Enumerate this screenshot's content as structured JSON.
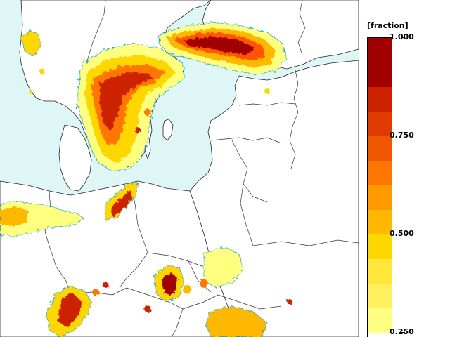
{
  "map": {
    "region": "Northern and Central Europe",
    "ocean_color": "#dff6f6",
    "land_color": "#ffffff",
    "border_color": "#333333",
    "coast_color": "#222222",
    "contour_color": "#19a7c9"
  },
  "legend": {
    "unit_label": "[fraction]",
    "classes": [
      {
        "from": 0.875,
        "to": 1.0,
        "color": "#a00000"
      },
      {
        "from": 0.8125,
        "to": 0.875,
        "color": "#cc2200"
      },
      {
        "from": 0.75,
        "to": 0.8125,
        "color": "#e03a00"
      },
      {
        "from": 0.6875,
        "to": 0.75,
        "color": "#f05500"
      },
      {
        "from": 0.625,
        "to": 0.6875,
        "color": "#ff7700"
      },
      {
        "from": 0.5625,
        "to": 0.625,
        "color": "#ff9900"
      },
      {
        "from": 0.5,
        "to": 0.5625,
        "color": "#ffb800"
      },
      {
        "from": 0.4375,
        "to": 0.5,
        "color": "#ffd700"
      },
      {
        "from": 0.375,
        "to": 0.4375,
        "color": "#ffe83a"
      },
      {
        "from": 0.3125,
        "to": 0.375,
        "color": "#fff060"
      },
      {
        "from": 0.25,
        "to": 0.3125,
        "color": "#ffff80"
      }
    ],
    "tick_labels": [
      {
        "value": 1.0,
        "label": "1.000"
      },
      {
        "value": 0.75,
        "label": "0.750"
      },
      {
        "value": 0.5,
        "label": "0.500"
      },
      {
        "value": 0.25,
        "label": "0.250"
      }
    ],
    "range": [
      0.2375,
      1.0
    ]
  }
}
